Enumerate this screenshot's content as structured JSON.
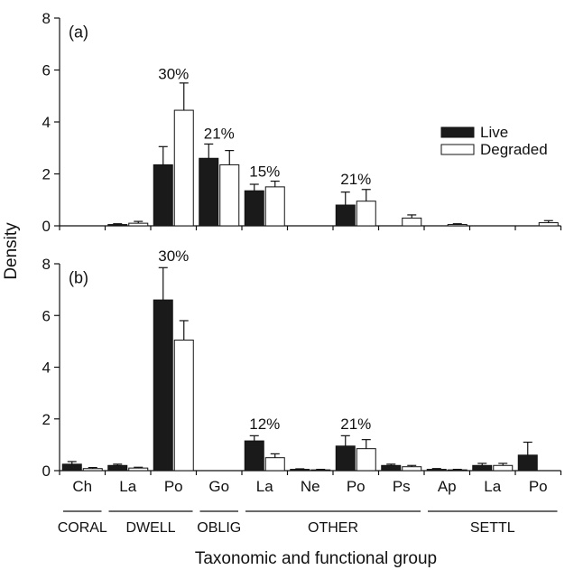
{
  "chart_data": {
    "type": "bar",
    "xlabel": "Taxonomic and functional group",
    "ylabel": "Density",
    "legend": {
      "position": "right",
      "entries": [
        {
          "name": "Live",
          "color": "#1a1a1a"
        },
        {
          "name": "Degraded",
          "color": "#ffffff"
        }
      ]
    },
    "categories": [
      "Ch",
      "La",
      "Po",
      "Go",
      "La",
      "Ne",
      "Po",
      "Ps",
      "Ap",
      "La",
      "Po"
    ],
    "groups": [
      {
        "name": "CORAL",
        "categories": [
          "Ch"
        ]
      },
      {
        "name": "DWELL",
        "categories": [
          "La",
          "Po"
        ]
      },
      {
        "name": "OBLIG",
        "categories": [
          "Go"
        ]
      },
      {
        "name": "OTHER",
        "categories": [
          "La",
          "Ne",
          "Po",
          "Ps"
        ]
      },
      {
        "name": "SETTL",
        "categories": [
          "Ap",
          "La",
          "Po"
        ]
      }
    ],
    "panels": [
      {
        "label": "(a)",
        "ylim": [
          0,
          8
        ],
        "yticks": [
          0,
          2,
          4,
          6,
          8
        ],
        "series": [
          {
            "name": "Live",
            "values": [
              0,
              0.05,
              2.35,
              2.6,
              1.35,
              0,
              0.8,
              0,
              0,
              0,
              0
            ],
            "errors": [
              0,
              0.03,
              0.7,
              0.55,
              0.25,
              0,
              0.5,
              0,
              0,
              0,
              0
            ]
          },
          {
            "name": "Degraded",
            "values": [
              0,
              0.1,
              4.45,
              2.35,
              1.5,
              0,
              0.95,
              0.3,
              0.05,
              0,
              0.12
            ],
            "errors": [
              0,
              0.07,
              1.05,
              0.55,
              0.22,
              0,
              0.45,
              0.12,
              0.03,
              0,
              0.08
            ]
          }
        ],
        "annotations": [
          {
            "text": "30%",
            "category_index": 2,
            "y": 5.65
          },
          {
            "text": "21%",
            "category_index": 3,
            "y": 3.35
          },
          {
            "text": "15%",
            "category_index": 4,
            "y": 1.9
          },
          {
            "text": "21%",
            "category_index": 6,
            "y": 1.6
          }
        ]
      },
      {
        "label": "(b)",
        "ylim": [
          0,
          8
        ],
        "yticks": [
          0,
          2,
          4,
          6,
          8
        ],
        "series": [
          {
            "name": "Live",
            "values": [
              0.25,
              0.2,
              6.6,
              0,
              1.15,
              0.05,
              0.95,
              0.2,
              0.05,
              0.2,
              0.6
            ],
            "errors": [
              0.1,
              0.05,
              1.25,
              0,
              0.2,
              0.02,
              0.4,
              0.05,
              0.03,
              0.08,
              0.5
            ]
          },
          {
            "name": "Degraded",
            "values": [
              0.08,
              0.1,
              5.05,
              0,
              0.5,
              0.03,
              0.85,
              0.15,
              0.03,
              0.2,
              0
            ],
            "errors": [
              0.04,
              0.03,
              0.75,
              0,
              0.15,
              0.02,
              0.35,
              0.05,
              0.02,
              0.08,
              0
            ]
          }
        ],
        "annotations": [
          {
            "text": "30%",
            "category_index": 2,
            "y": 8.1
          },
          {
            "text": "12%",
            "category_index": 4,
            "y": 1.6
          },
          {
            "text": "21%",
            "category_index": 6,
            "y": 1.6
          }
        ]
      }
    ]
  }
}
